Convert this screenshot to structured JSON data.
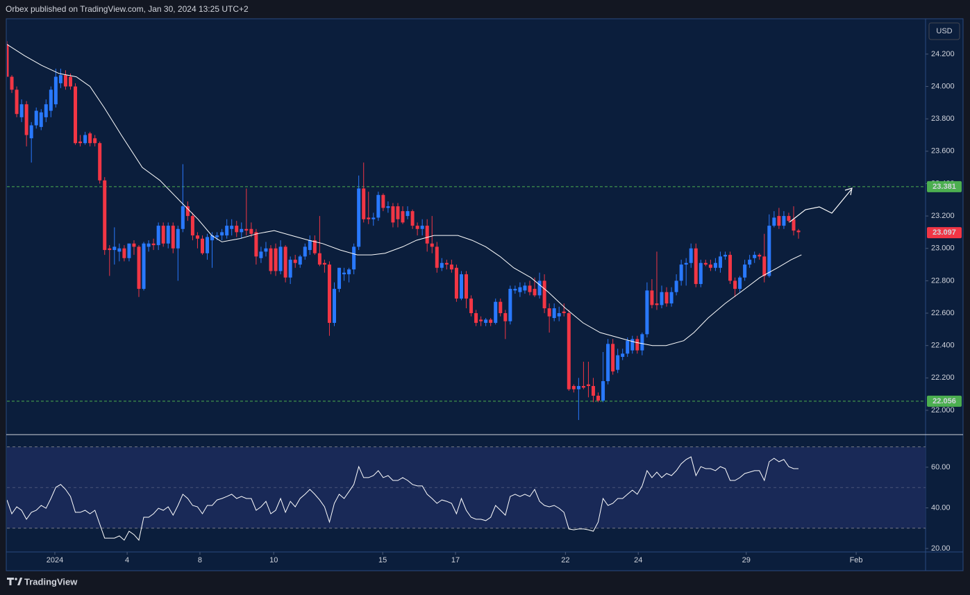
{
  "header": {
    "text": "Orbex published on TradingView.com, Jan 30, 2024 13:25 UTC+2"
  },
  "footer": {
    "brand": "TradingView"
  },
  "chart_data": {
    "type": "candlestick",
    "currency": "USD",
    "up_color": "#2979ff",
    "down_color": "#f23645",
    "xlim": [
      0,
      188
    ],
    "xticks": [
      {
        "value": 9.8,
        "label": "2024"
      },
      {
        "value": 24.6,
        "label": "4"
      },
      {
        "value": 39.5,
        "label": "8"
      },
      {
        "value": 54.6,
        "label": "10"
      },
      {
        "value": 76.9,
        "label": "15"
      },
      {
        "value": 91.8,
        "label": "17"
      },
      {
        "value": 114.3,
        "label": "22"
      },
      {
        "value": 129.2,
        "label": "24"
      },
      {
        "value": 151.3,
        "label": "29"
      },
      {
        "value": 173.8,
        "label": "Feb"
      }
    ],
    "ylim": [
      21.854,
      24.414
    ],
    "yticks": [
      {
        "value": 22,
        "label": "22.000"
      },
      {
        "value": 22.2,
        "label": "22.200"
      },
      {
        "value": 22.4,
        "label": "22.400"
      },
      {
        "value": 22.6,
        "label": "22.600"
      },
      {
        "value": 22.8,
        "label": "22.800"
      },
      {
        "value": 23,
        "label": "23.000"
      },
      {
        "value": 23.2,
        "label": "23.200"
      },
      {
        "value": 23.4,
        "label": "23.400"
      },
      {
        "value": 23.6,
        "label": "23.600"
      },
      {
        "value": 23.8,
        "label": "23.800"
      },
      {
        "value": 24,
        "label": "24.000"
      },
      {
        "value": 24.2,
        "label": "24.200"
      }
    ],
    "ohlc": [
      [
        24.26,
        24.28,
        24.06,
        24.06
      ],
      [
        24.06,
        24.07,
        23.96,
        23.98
      ],
      [
        23.98,
        24.0,
        23.81,
        23.83
      ],
      [
        23.81,
        23.92,
        23.78,
        23.89
      ],
      [
        23.89,
        23.91,
        23.63,
        23.7
      ],
      [
        23.68,
        23.78,
        23.53,
        23.76
      ],
      [
        23.76,
        23.87,
        23.74,
        23.85
      ],
      [
        23.75,
        23.86,
        23.73,
        23.84
      ],
      [
        23.81,
        23.92,
        23.78,
        23.89
      ],
      [
        23.85,
        24.0,
        23.81,
        23.98
      ],
      [
        23.89,
        24.11,
        23.87,
        24.06
      ],
      [
        24.02,
        24.11,
        23.99,
        24.07
      ],
      [
        24.07,
        24.1,
        23.98,
        24.0
      ],
      [
        24.06,
        24.08,
        23.98,
        24.0
      ],
      [
        24.0,
        24.02,
        23.64,
        23.65
      ],
      [
        23.66,
        23.7,
        23.63,
        23.65
      ],
      [
        23.65,
        23.72,
        23.64,
        23.7
      ],
      [
        23.71,
        23.72,
        23.63,
        23.65
      ],
      [
        23.68,
        23.7,
        23.63,
        23.65
      ],
      [
        23.65,
        23.66,
        23.4,
        23.42
      ],
      [
        23.42,
        23.44,
        22.96,
        22.99
      ],
      [
        23.0,
        23.02,
        22.83,
        22.99
      ],
      [
        22.99,
        23.13,
        22.9,
        23.01
      ],
      [
        22.98,
        23.03,
        22.92,
        23.0
      ],
      [
        23.0,
        23.02,
        22.92,
        22.94
      ],
      [
        22.94,
        23.03,
        22.92,
        23.03
      ],
      [
        23.03,
        23.05,
        22.96,
        23.01
      ],
      [
        23.01,
        23.02,
        22.7,
        22.75
      ],
      [
        22.75,
        23.04,
        22.74,
        23.03
      ],
      [
        23.01,
        23.05,
        22.98,
        23.03
      ],
      [
        23.03,
        23.06,
        22.99,
        23.02
      ],
      [
        23.02,
        23.16,
        22.99,
        23.14
      ],
      [
        23.14,
        23.16,
        23.01,
        23.03
      ],
      [
        23.03,
        23.16,
        23.0,
        23.14
      ],
      [
        23.14,
        23.16,
        22.97,
        23.0
      ],
      [
        23.0,
        23.14,
        22.8,
        23.12
      ],
      [
        23.12,
        23.52,
        23.1,
        23.26
      ],
      [
        23.26,
        23.29,
        23.17,
        23.2
      ],
      [
        23.2,
        23.22,
        23.05,
        23.08
      ],
      [
        23.08,
        23.1,
        23.0,
        23.06
      ],
      [
        23.06,
        23.08,
        22.96,
        22.97
      ],
      [
        22.97,
        23.09,
        22.93,
        23.07
      ],
      [
        23.05,
        23.1,
        22.88,
        23.08
      ],
      [
        23.07,
        23.1,
        23.05,
        23.08
      ],
      [
        23.08,
        23.12,
        23.05,
        23.1
      ],
      [
        23.08,
        23.18,
        23.06,
        23.14
      ],
      [
        23.12,
        23.18,
        23.08,
        23.14
      ],
      [
        23.14,
        23.17,
        23.07,
        23.1
      ],
      [
        23.1,
        23.16,
        23.06,
        23.12
      ],
      [
        23.12,
        23.37,
        23.08,
        23.11
      ],
      [
        23.12,
        23.16,
        23.07,
        23.09
      ],
      [
        23.1,
        23.12,
        22.9,
        22.95
      ],
      [
        22.94,
        23.01,
        22.91,
        22.98
      ],
      [
        22.98,
        23.04,
        22.95,
        23.0
      ],
      [
        23.0,
        23.02,
        22.84,
        22.86
      ],
      [
        23.0,
        23.03,
        22.83,
        22.86
      ],
      [
        22.86,
        23.05,
        22.84,
        23.01
      ],
      [
        23.01,
        23.02,
        22.79,
        22.82
      ],
      [
        22.82,
        22.95,
        22.78,
        22.93
      ],
      [
        22.93,
        22.96,
        22.88,
        22.91
      ],
      [
        22.9,
        22.96,
        22.88,
        22.95
      ],
      [
        22.95,
        23.03,
        22.93,
        23.01
      ],
      [
        22.99,
        23.08,
        22.96,
        23.05
      ],
      [
        23.05,
        23.08,
        22.96,
        22.97
      ],
      [
        22.97,
        23.2,
        22.89,
        22.9
      ],
      [
        22.91,
        22.93,
        22.85,
        22.9
      ],
      [
        22.9,
        22.92,
        22.46,
        22.54
      ],
      [
        22.54,
        22.79,
        22.52,
        22.75
      ],
      [
        22.75,
        22.88,
        22.73,
        22.88
      ],
      [
        22.84,
        22.88,
        22.8,
        22.85
      ],
      [
        22.84,
        22.88,
        22.79,
        22.87
      ],
      [
        22.87,
        23.03,
        22.84,
        23.01
      ],
      [
        23.01,
        23.45,
        22.99,
        23.37
      ],
      [
        23.37,
        23.53,
        23.16,
        23.18
      ],
      [
        23.19,
        23.35,
        23.15,
        23.18
      ],
      [
        23.18,
        23.22,
        23.14,
        23.19
      ],
      [
        23.19,
        23.35,
        23.17,
        23.33
      ],
      [
        23.33,
        23.34,
        23.23,
        23.25
      ],
      [
        23.25,
        23.29,
        23.22,
        23.26
      ],
      [
        23.26,
        23.28,
        23.13,
        23.16
      ],
      [
        23.26,
        23.28,
        23.13,
        23.18
      ],
      [
        23.23,
        23.26,
        23.15,
        23.16
      ],
      [
        23.2,
        23.26,
        23.18,
        23.23
      ],
      [
        23.23,
        23.24,
        23.12,
        23.14
      ],
      [
        23.14,
        23.16,
        23.08,
        23.12
      ],
      [
        23.12,
        23.18,
        23.08,
        23.14
      ],
      [
        23.14,
        23.18,
        22.98,
        23.03
      ],
      [
        23.03,
        23.2,
        22.97,
        23.01
      ],
      [
        23.01,
        23.04,
        22.85,
        22.88
      ],
      [
        22.88,
        22.94,
        22.86,
        22.91
      ],
      [
        22.91,
        22.93,
        22.87,
        22.9
      ],
      [
        22.9,
        22.93,
        22.85,
        22.87
      ],
      [
        22.88,
        22.9,
        22.67,
        22.69
      ],
      [
        22.69,
        22.86,
        22.68,
        22.84
      ],
      [
        22.84,
        22.86,
        22.63,
        22.69
      ],
      [
        22.69,
        22.71,
        22.58,
        22.6
      ],
      [
        22.6,
        22.62,
        22.52,
        22.54
      ],
      [
        22.56,
        22.58,
        22.52,
        22.55
      ],
      [
        22.54,
        22.57,
        22.52,
        22.56
      ],
      [
        22.56,
        22.57,
        22.52,
        22.54
      ],
      [
        22.54,
        22.69,
        22.53,
        22.67
      ],
      [
        22.67,
        22.69,
        22.58,
        22.6
      ],
      [
        22.6,
        22.62,
        22.44,
        22.55
      ],
      [
        22.55,
        22.77,
        22.53,
        22.75
      ],
      [
        22.74,
        22.77,
        22.72,
        22.75
      ],
      [
        22.73,
        22.79,
        22.7,
        22.76
      ],
      [
        22.74,
        22.79,
        22.72,
        22.77
      ],
      [
        22.77,
        22.8,
        22.71,
        22.73
      ],
      [
        22.75,
        22.82,
        22.7,
        22.71
      ],
      [
        22.71,
        22.85,
        22.69,
        22.8
      ],
      [
        22.8,
        22.84,
        22.6,
        22.63
      ],
      [
        22.63,
        22.66,
        22.48,
        22.58
      ],
      [
        22.57,
        22.66,
        22.55,
        22.63
      ],
      [
        22.58,
        22.64,
        22.55,
        22.6
      ],
      [
        22.61,
        22.66,
        22.58,
        22.6
      ],
      [
        22.6,
        22.62,
        22.12,
        22.13
      ],
      [
        22.15,
        22.16,
        22.11,
        22.13
      ],
      [
        22.13,
        22.2,
        21.94,
        22.15
      ],
      [
        22.15,
        22.3,
        22.13,
        22.14
      ],
      [
        22.16,
        22.3,
        22.08,
        22.15
      ],
      [
        22.15,
        22.2,
        22.05,
        22.09
      ],
      [
        22.09,
        22.11,
        22.05,
        22.06
      ],
      [
        22.06,
        22.36,
        22.05,
        22.18
      ],
      [
        22.18,
        22.44,
        22.16,
        22.41
      ],
      [
        22.41,
        22.44,
        22.22,
        22.24
      ],
      [
        22.25,
        22.38,
        22.23,
        22.34
      ],
      [
        22.33,
        22.38,
        22.31,
        22.35
      ],
      [
        22.35,
        22.45,
        22.33,
        22.43
      ],
      [
        22.37,
        22.46,
        22.35,
        22.44
      ],
      [
        22.44,
        22.46,
        22.35,
        22.37
      ],
      [
        22.37,
        22.48,
        22.34,
        22.47
      ],
      [
        22.47,
        22.79,
        22.45,
        22.74
      ],
      [
        22.74,
        22.81,
        22.63,
        22.65
      ],
      [
        22.66,
        22.98,
        22.62,
        22.65
      ],
      [
        22.65,
        22.77,
        22.63,
        22.73
      ],
      [
        22.73,
        22.76,
        22.64,
        22.66
      ],
      [
        22.66,
        22.76,
        22.64,
        22.73
      ],
      [
        22.73,
        22.84,
        22.71,
        22.8
      ],
      [
        22.8,
        22.93,
        22.77,
        22.9
      ],
      [
        22.9,
        22.94,
        22.77,
        22.91
      ],
      [
        22.91,
        23.03,
        22.88,
        23.0
      ],
      [
        23.0,
        23.03,
        22.76,
        22.78
      ],
      [
        22.78,
        22.93,
        22.76,
        22.91
      ],
      [
        22.91,
        22.93,
        22.89,
        22.9
      ],
      [
        22.9,
        22.93,
        22.86,
        22.88
      ],
      [
        22.88,
        22.94,
        22.86,
        22.91
      ],
      [
        22.88,
        22.98,
        22.85,
        22.95
      ],
      [
        22.95,
        22.98,
        22.93,
        22.96
      ],
      [
        22.96,
        22.98,
        22.78,
        22.8
      ],
      [
        22.8,
        22.82,
        22.7,
        22.75
      ],
      [
        22.75,
        22.83,
        22.73,
        22.82
      ],
      [
        22.82,
        22.93,
        22.8,
        22.9
      ],
      [
        22.9,
        22.96,
        22.88,
        22.93
      ],
      [
        22.94,
        22.98,
        22.91,
        22.96
      ],
      [
        22.96,
        22.97,
        22.93,
        22.95
      ],
      [
        22.95,
        23.09,
        22.79,
        22.83
      ],
      [
        22.83,
        23.21,
        22.82,
        23.14
      ],
      [
        23.14,
        23.23,
        23.13,
        23.19
      ],
      [
        23.2,
        23.25,
        23.12,
        23.14
      ],
      [
        23.14,
        23.23,
        23.12,
        23.2
      ],
      [
        23.2,
        23.22,
        23.16,
        23.17
      ],
      [
        23.18,
        23.26,
        23.08,
        23.11
      ],
      [
        23.11,
        23.12,
        23.06,
        23.1
      ]
    ],
    "ma": {
      "color": "#ffffff",
      "x": [
        0,
        3.6,
        7.1,
        10.7,
        14.2,
        17.0,
        19.9,
        23.4,
        27.7,
        31.3,
        35.5,
        39.1,
        41.9,
        44.0,
        47.6,
        51.1,
        54.7,
        58.2,
        61.8,
        64.6,
        68.2,
        71.7,
        74.6,
        77.4,
        81.0,
        83.8,
        87.4,
        90.2,
        92.3,
        95.2,
        98.0,
        100.9,
        103.7,
        107.2,
        110.8,
        114.3,
        117.9,
        121.4,
        125.0,
        128.6,
        132.1,
        134.9,
        138.5,
        140.6,
        143.5,
        147.0,
        150.6,
        154.1,
        157.7,
        160.5,
        162.6
      ],
      "values": [
        24.26,
        24.19,
        24.13,
        24.08,
        24.06,
        24.0,
        23.87,
        23.7,
        23.5,
        23.42,
        23.29,
        23.18,
        23.08,
        23.04,
        23.06,
        23.09,
        23.11,
        23.08,
        23.05,
        23.03,
        22.99,
        22.96,
        22.96,
        22.97,
        23.01,
        23.05,
        23.08,
        23.08,
        23.08,
        23.05,
        23.01,
        22.95,
        22.88,
        22.82,
        22.73,
        22.63,
        22.54,
        22.48,
        22.45,
        22.42,
        22.4,
        22.4,
        22.43,
        22.48,
        22.57,
        22.66,
        22.74,
        22.82,
        22.88,
        22.93,
        22.96
      ]
    },
    "hline_color": "#4caf50",
    "hlines": [
      {
        "value": 23.381,
        "label": "23.381"
      },
      {
        "value": 22.056,
        "label": "22.056"
      }
    ],
    "last_price": {
      "value": 23.097,
      "label": "23.097"
    },
    "rsi": {
      "color": "#ffffff",
      "ylim": [
        18.3,
        75.7
      ],
      "yticks": [
        {
          "value": 20,
          "label": "20.00"
        },
        {
          "value": 40,
          "label": "40.00"
        },
        {
          "value": 60,
          "label": "60.00"
        }
      ],
      "band": [
        30,
        70
      ],
      "mid": 50,
      "values": [
        43.9,
        37.1,
        40.5,
        38.8,
        34.4,
        37.8,
        38.8,
        41.2,
        39.8,
        44.6,
        50.1,
        51.5,
        49.1,
        45.6,
        37.8,
        37.8,
        38.8,
        37.1,
        38.8,
        32.0,
        25.1,
        25.1,
        25.1,
        26.2,
        24.1,
        28.5,
        26.8,
        24.1,
        35.4,
        35.4,
        37.1,
        39.8,
        38.8,
        40.5,
        36.4,
        41.2,
        46.7,
        44.6,
        41.2,
        40.5,
        37.1,
        41.2,
        41.2,
        43.9,
        44.6,
        45.6,
        46.7,
        44.6,
        45.6,
        44.6,
        44.6,
        38.8,
        40.5,
        43.2,
        37.1,
        38.8,
        44.6,
        37.8,
        43.2,
        40.5,
        44.6,
        46.7,
        49.1,
        46.7,
        43.9,
        40.5,
        33.0,
        42.2,
        46.7,
        44.6,
        48.0,
        51.5,
        60.3,
        54.9,
        54.9,
        55.9,
        58.3,
        54.9,
        55.9,
        53.5,
        53.5,
        54.9,
        53.5,
        51.5,
        50.8,
        50.8,
        46.7,
        44.6,
        42.2,
        43.9,
        43.2,
        42.2,
        37.1,
        44.6,
        38.8,
        35.4,
        34.4,
        34.4,
        33.7,
        35.4,
        41.2,
        38.8,
        36.4,
        45.6,
        46.7,
        45.6,
        46.7,
        45.6,
        49.1,
        43.2,
        41.2,
        40.5,
        41.2,
        39.8,
        37.8,
        29.6,
        29.2,
        29.6,
        29.6,
        29.2,
        28.5,
        33.0,
        44.6,
        41.2,
        42.2,
        44.6,
        44.6,
        46.7,
        48.7,
        46.7,
        50.8,
        58.3,
        54.9,
        57.6,
        54.9,
        56.9,
        55.9,
        58.3,
        61.7,
        63.8,
        65.1,
        55.9,
        60.3,
        59.3,
        59.3,
        58.3,
        60.3,
        59.3,
        53.5,
        53.5,
        54.9,
        56.9,
        57.6,
        58.3,
        58.3,
        53.5,
        62.7,
        64.4,
        62.7,
        63.8,
        60.3,
        59.3,
        59.3
      ]
    }
  }
}
